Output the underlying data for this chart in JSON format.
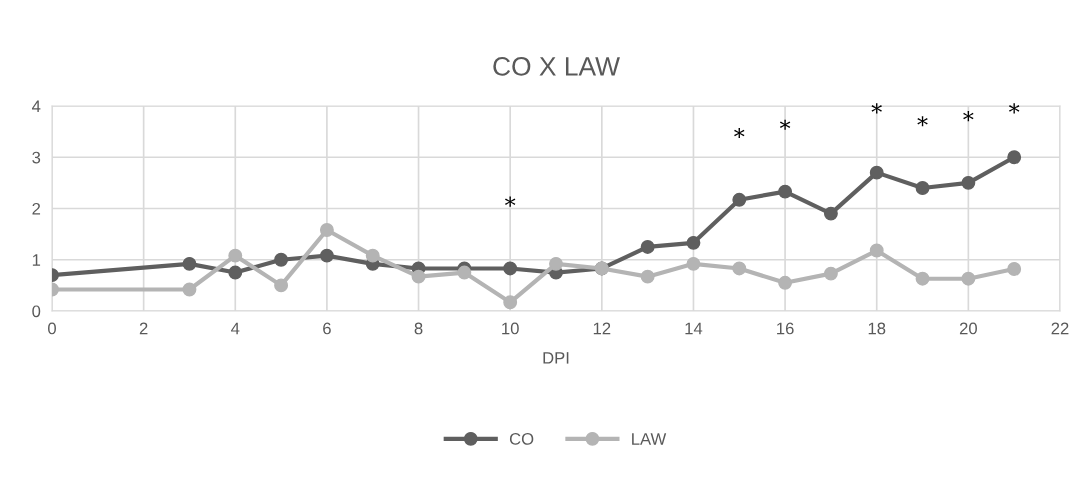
{
  "chart_data": {
    "type": "line",
    "title": "CO X LAW",
    "xlabel": "DPI",
    "x": [
      0,
      3,
      4,
      5,
      6,
      7,
      8,
      9,
      10,
      11,
      12,
      13,
      14,
      15,
      16,
      17,
      18,
      19,
      20,
      21
    ],
    "series": [
      {
        "name": "CO",
        "color": "#5f5f5f",
        "values": [
          0.7,
          0.92,
          0.75,
          1.0,
          1.08,
          0.92,
          0.83,
          0.83,
          0.83,
          0.75,
          0.83,
          1.25,
          1.33,
          2.17,
          2.33,
          1.9,
          2.7,
          2.4,
          2.5,
          3.0
        ],
        "value_labels": [
          null,
          null,
          null,
          null,
          null,
          null,
          null,
          null,
          "*",
          null,
          null,
          null,
          null,
          "*",
          "*",
          null,
          "*",
          "*",
          "*",
          "*"
        ]
      },
      {
        "name": "LAW",
        "color": "#b4b4b4",
        "values": [
          0.42,
          0.42,
          1.08,
          0.5,
          1.58,
          1.08,
          0.67,
          0.75,
          0.17,
          0.92,
          0.83,
          0.67,
          0.92,
          0.83,
          0.55,
          0.73,
          1.18,
          0.63,
          0.63,
          0.82
        ]
      }
    ],
    "xlim": [
      0,
      22
    ],
    "xticks": [
      0,
      2,
      4,
      6,
      8,
      10,
      12,
      14,
      16,
      18,
      20,
      22
    ],
    "ylim": [
      0,
      4
    ],
    "yticks": [
      0,
      1,
      2,
      3,
      4
    ],
    "grid": true,
    "legend": "bottom",
    "marker": "circle",
    "line_style": "solid"
  }
}
